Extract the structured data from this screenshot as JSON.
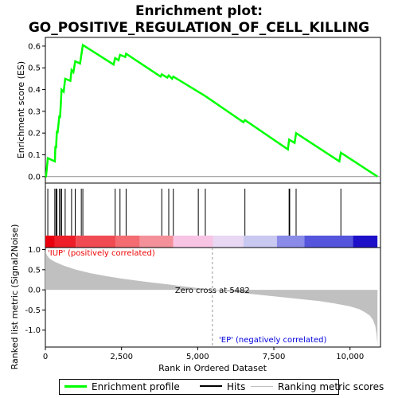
{
  "chart_data": {
    "type": "line",
    "title_line1": "Enrichment plot:",
    "title_line2": "GO_POSITIVE_REGULATION_OF_CELL_KILLING",
    "top_panel": {
      "ylabel": "Enrichment score (ES)",
      "ylim": [
        -0.03,
        0.64
      ],
      "yticks": [
        0.0,
        0.1,
        0.2,
        0.3,
        0.4,
        0.5,
        0.6
      ],
      "ytick_labels": [
        "0.0",
        "0.1",
        "0.2",
        "0.3",
        "0.4",
        "0.5",
        "0.6"
      ],
      "series": [
        {
          "name": "Enrichment profile",
          "color": "#00ff00",
          "x": [
            0,
            20,
            80,
            310,
            330,
            350,
            380,
            400,
            460,
            480,
            510,
            530,
            600,
            650,
            820,
            860,
            920,
            980,
            1140,
            1180,
            1230,
            2240,
            2290,
            2400,
            2450,
            2620,
            2650,
            3780,
            3820,
            4000,
            4050,
            4160,
            4200,
            5020,
            5250,
            6500,
            6550,
            7960,
            8000,
            8180,
            8230,
            9650,
            9700,
            10900
          ],
          "y": [
            0.0,
            0.0,
            0.085,
            0.07,
            0.14,
            0.13,
            0.21,
            0.2,
            0.28,
            0.27,
            0.34,
            0.4,
            0.39,
            0.45,
            0.44,
            0.49,
            0.48,
            0.53,
            0.52,
            0.56,
            0.605,
            0.515,
            0.545,
            0.535,
            0.56,
            0.55,
            0.565,
            0.46,
            0.47,
            0.455,
            0.465,
            0.45,
            0.46,
            0.39,
            0.37,
            0.25,
            0.26,
            0.125,
            0.17,
            0.155,
            0.2,
            0.07,
            0.11,
            0.0
          ]
        }
      ]
    },
    "hits": {
      "name": "Hits",
      "x": [
        80,
        310,
        350,
        380,
        460,
        510,
        530,
        650,
        860,
        980,
        1180,
        1230,
        2290,
        2450,
        2650,
        3820,
        4050,
        4200,
        5020,
        5250,
        6550,
        8000,
        8020,
        8230,
        9700
      ]
    },
    "color_bar": {
      "segments": [
        {
          "from": 0,
          "to": 300,
          "color": "#e8000e"
        },
        {
          "from": 300,
          "to": 1000,
          "color": "#ee1e28"
        },
        {
          "from": 1000,
          "to": 2300,
          "color": "#f04a52"
        },
        {
          "from": 2300,
          "to": 3100,
          "color": "#f26c72"
        },
        {
          "from": 3100,
          "to": 4200,
          "color": "#f4909a"
        },
        {
          "from": 4200,
          "to": 5500,
          "color": "#f8c4e4"
        },
        {
          "from": 5500,
          "to": 6500,
          "color": "#e8d8f4"
        },
        {
          "from": 6500,
          "to": 7600,
          "color": "#c8c8f0"
        },
        {
          "from": 7600,
          "to": 8500,
          "color": "#8a8ae8"
        },
        {
          "from": 8500,
          "to": 10100,
          "color": "#5454dc"
        },
        {
          "from": 10100,
          "to": 10900,
          "color": "#1e10c8"
        }
      ]
    },
    "bottom_panel": {
      "ylabel": "Ranked list metric (Signal2Noise)",
      "ylim": [
        -1.42,
        1.05
      ],
      "yticks": [
        -1.0,
        -0.5,
        0.0,
        0.5,
        1.0
      ],
      "ytick_labels": [
        "-1.0",
        "-0.5",
        "0.0",
        "0.5",
        "1.0"
      ],
      "series": [
        {
          "name": "Ranking metric scores",
          "color": "#c0c0c0",
          "x": [
            0,
            10,
            50,
            150,
            300,
            600,
            1000,
            1500,
            2000,
            2500,
            3000,
            3500,
            4000,
            4500,
            5000,
            5482,
            6000,
            6500,
            7000,
            7500,
            8000,
            8500,
            9000,
            9500,
            10000,
            10300,
            10500,
            10650,
            10750,
            10830,
            10870,
            10900
          ],
          "y": [
            1.02,
            0.95,
            0.86,
            0.77,
            0.7,
            0.6,
            0.5,
            0.41,
            0.34,
            0.28,
            0.23,
            0.18,
            0.14,
            0.09,
            0.045,
            0.0,
            -0.04,
            -0.08,
            -0.12,
            -0.16,
            -0.2,
            -0.24,
            -0.28,
            -0.34,
            -0.41,
            -0.48,
            -0.56,
            -0.64,
            -0.74,
            -0.9,
            -1.1,
            -1.35
          ]
        }
      ],
      "zero_cross_label": "Zero cross at 5482",
      "zero_cross_x": 5482,
      "positive_label": "'IUP' (positively correlated)",
      "negative_label": "'EP' (negatively correlated)"
    },
    "x_axis": {
      "xlabel": "Rank in Ordered Dataset",
      "xlim": [
        0,
        11000
      ],
      "xticks": [
        0,
        2500,
        5000,
        7500,
        10000
      ],
      "xtick_labels": [
        "0",
        "2,500",
        "5,000",
        "7,500",
        "10,000"
      ]
    },
    "legend": {
      "placement": "bottom",
      "items": [
        "Enrichment profile",
        "Hits",
        "Ranking metric scores"
      ]
    }
  }
}
